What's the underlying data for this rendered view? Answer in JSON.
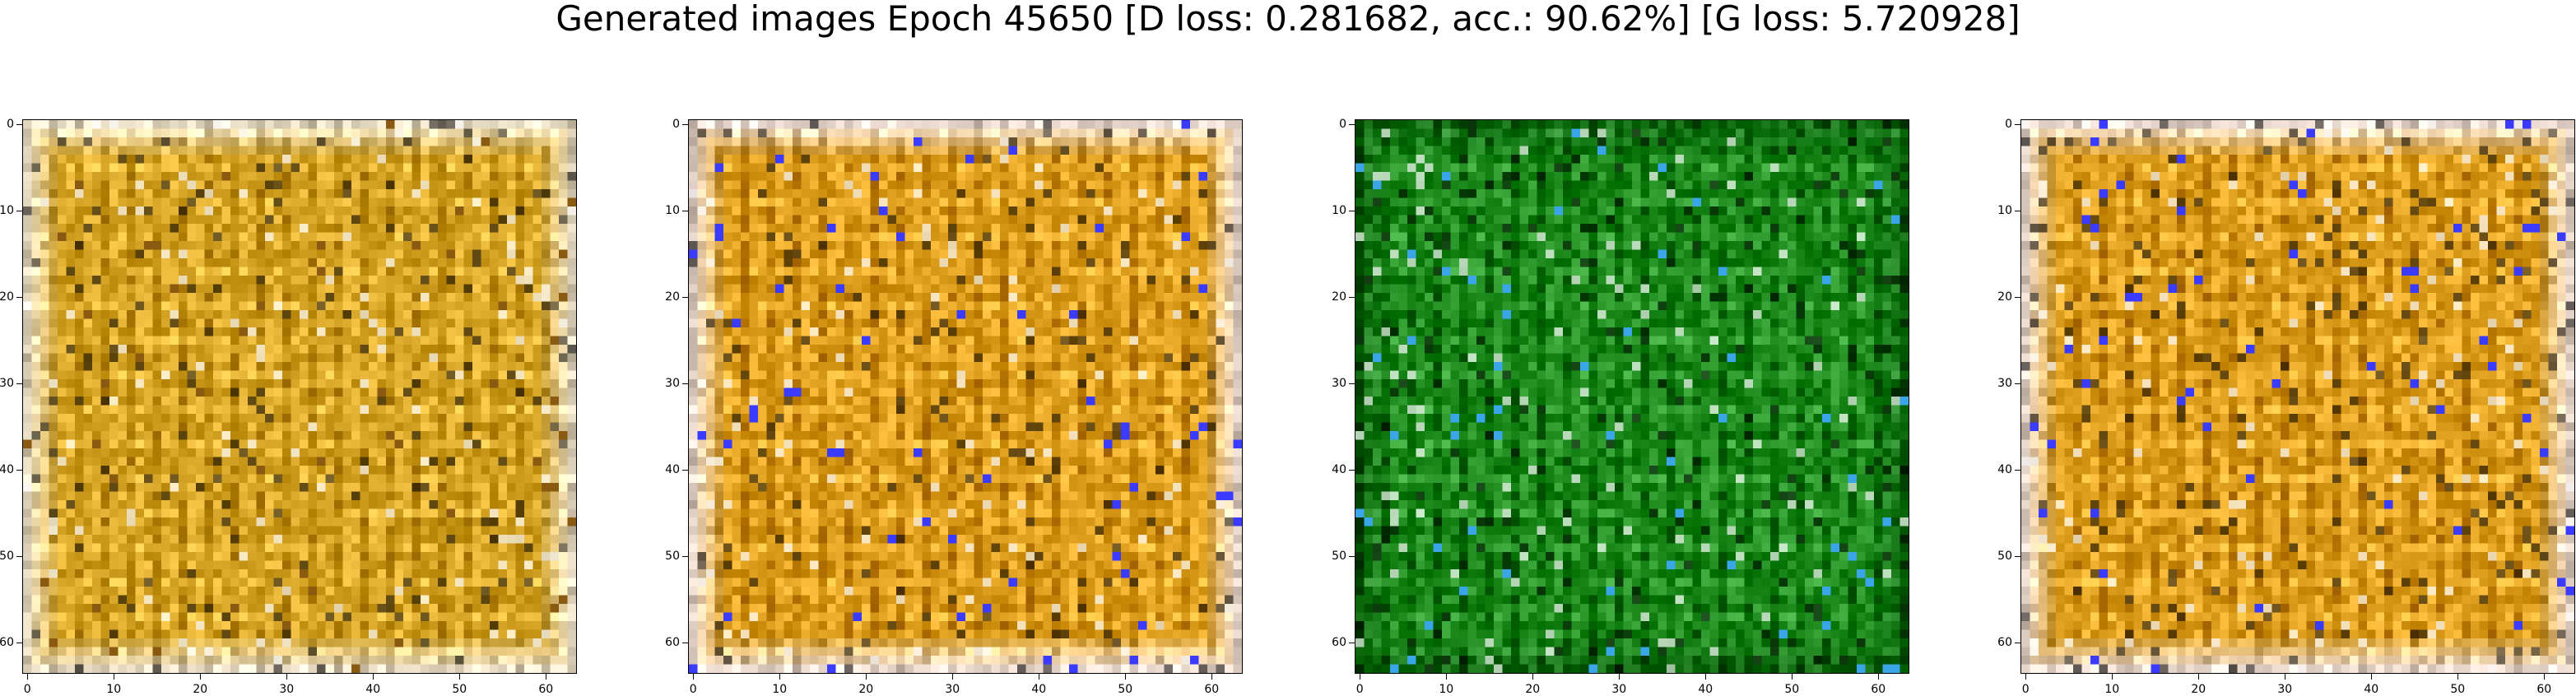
{
  "title": "Generated images Epoch 45650 [D loss: 0.281682, acc.: 90.62%] [G loss: 5.720928]",
  "axis": {
    "xticks": [
      "0",
      "10",
      "20",
      "30",
      "40",
      "50",
      "60"
    ],
    "yticks": [
      "0",
      "10",
      "20",
      "30",
      "40",
      "50",
      "60"
    ],
    "range": [
      0,
      63
    ]
  },
  "panels": [
    {
      "name": "generated-image-1",
      "base_color": "#d9a82a",
      "edge_color": "#f2e6cf",
      "accent_color": "#8a5a10"
    },
    {
      "name": "generated-image-2",
      "base_color": "#e0a020",
      "edge_color": "#f3e2d8",
      "accent_color": "#3b3bff"
    },
    {
      "name": "generated-image-3",
      "base_color": "#1c8a1c",
      "edge_color": "#0c6a0c",
      "accent_color": "#3aa6e8"
    },
    {
      "name": "generated-image-4",
      "base_color": "#e0a020",
      "edge_color": "#f3e2d8",
      "accent_color": "#3b3bff"
    }
  ]
}
